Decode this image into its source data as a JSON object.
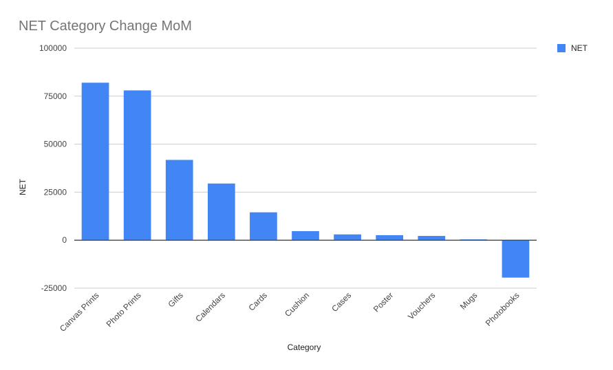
{
  "chart_data": {
    "type": "bar",
    "title": "NET Category Change MoM",
    "xlabel": "Category",
    "ylabel": "NET",
    "categories": [
      "Canvas Prints",
      "Photo Prints",
      "Gifts",
      "Calendars",
      "Cards",
      "Cushion",
      "Cases",
      "Poster",
      "Vouchers",
      "Mugs",
      "Photobooks"
    ],
    "series": [
      {
        "name": "NET",
        "color": "#4285f4",
        "values": [
          82000,
          78000,
          41800,
          29500,
          14500,
          4700,
          3000,
          2600,
          2200,
          400,
          -19500
        ]
      }
    ],
    "ylim": [
      -25000,
      100000
    ],
    "yticks": [
      "100000",
      "75000",
      "50000",
      "25000",
      "0",
      "-25000"
    ],
    "grid": true,
    "legend": "right"
  }
}
